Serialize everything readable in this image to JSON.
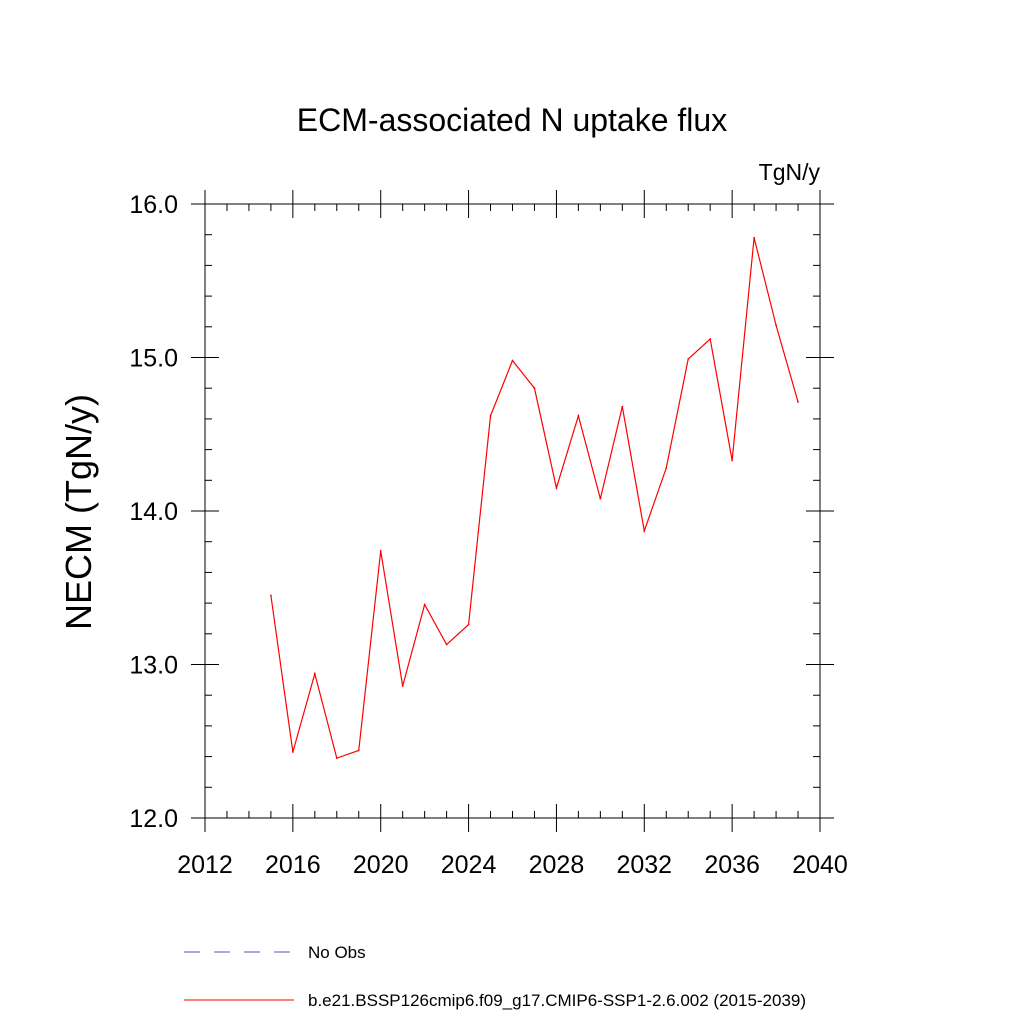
{
  "chart_data": {
    "type": "line",
    "title": "ECM-associated N uptake flux",
    "units_label": "TgN/y",
    "ylabel": "NECM  (TgN/y)",
    "xlabel": "",
    "xlim": [
      2012,
      2040
    ],
    "ylim": [
      12.0,
      16.0
    ],
    "x_ticks": [
      2012,
      2016,
      2020,
      2024,
      2028,
      2032,
      2036,
      2040
    ],
    "x_tick_labels": [
      "2012",
      "2016",
      "2020",
      "2024",
      "2028",
      "2032",
      "2036",
      "2040"
    ],
    "y_ticks": [
      12.0,
      13.0,
      14.0,
      15.0,
      16.0
    ],
    "y_tick_labels": [
      "12.0",
      "13.0",
      "14.0",
      "15.0",
      "16.0"
    ],
    "x_minor_step": 1,
    "y_minor_step": 0.2,
    "grid": false,
    "legend_position": "bottom-left",
    "series": [
      {
        "name": "No Obs",
        "color": "#5050b8",
        "dash": "dashed",
        "x": [],
        "values": []
      },
      {
        "name": "b.e21.BSSP126cmip6.f09_g17.CMIP6-SSP1-2.6.002 (2015-2039)",
        "color": "#ff0000",
        "dash": "solid",
        "x": [
          2015,
          2016,
          2017,
          2018,
          2019,
          2020,
          2021,
          2022,
          2023,
          2024,
          2025,
          2026,
          2027,
          2028,
          2029,
          2030,
          2031,
          2032,
          2033,
          2034,
          2035,
          2036,
          2037,
          2038,
          2039
        ],
        "values": [
          13.45,
          12.43,
          12.94,
          12.39,
          12.44,
          13.74,
          12.86,
          13.39,
          13.13,
          13.26,
          14.62,
          14.98,
          14.8,
          14.15,
          14.62,
          14.08,
          14.68,
          13.87,
          14.28,
          14.99,
          15.12,
          14.33,
          15.78,
          15.21,
          14.71
        ]
      }
    ]
  }
}
